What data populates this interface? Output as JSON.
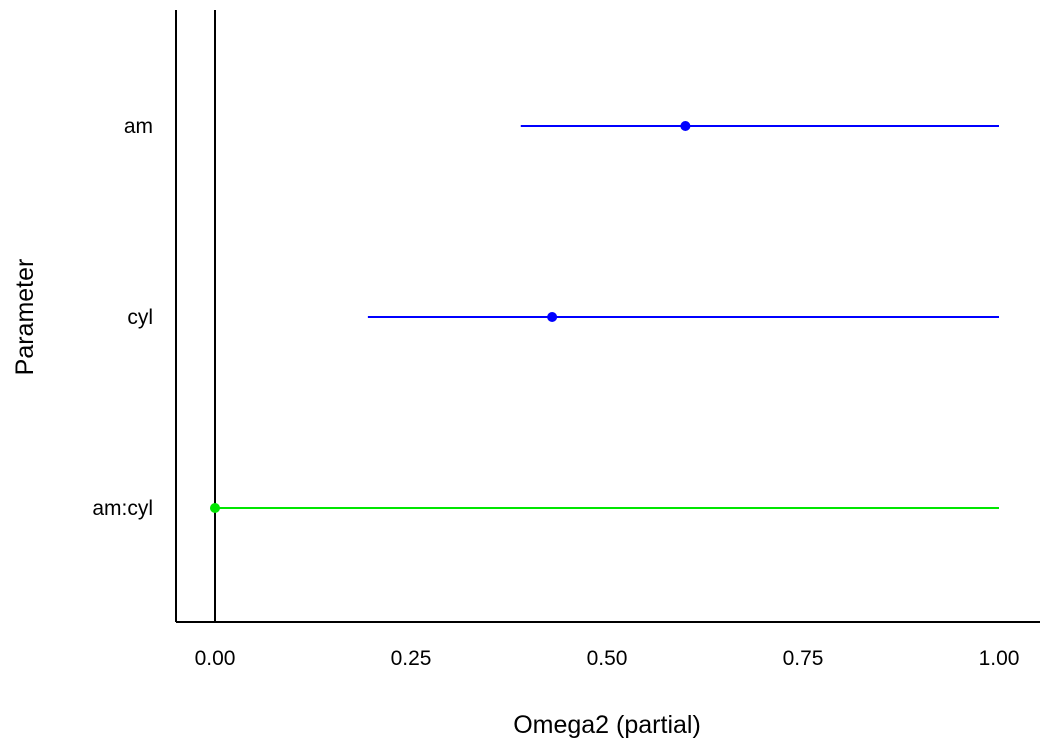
{
  "chart_data": {
    "type": "forest",
    "title": "",
    "xlabel": "Omega2 (partial)",
    "ylabel": "Parameter",
    "xlim": [
      -0.1,
      1.05
    ],
    "xticks": [
      0.0,
      0.25,
      0.5,
      0.75,
      1.0
    ],
    "xtick_labels": [
      "0.00",
      "0.25",
      "0.50",
      "0.75",
      "1.00"
    ],
    "reference_line": 0.0,
    "grid": false,
    "legend": "none",
    "parameters": [
      {
        "label": "am",
        "estimate": 0.6,
        "ci_low": 0.39,
        "ci_high": 1.0,
        "color": "#0000ff"
      },
      {
        "label": "cyl",
        "estimate": 0.43,
        "ci_low": 0.195,
        "ci_high": 1.0,
        "color": "#0000ff"
      },
      {
        "label": "am:cyl",
        "estimate": 0.0,
        "ci_low": 0.0,
        "ci_high": 1.0,
        "color": "#00e600"
      }
    ]
  }
}
